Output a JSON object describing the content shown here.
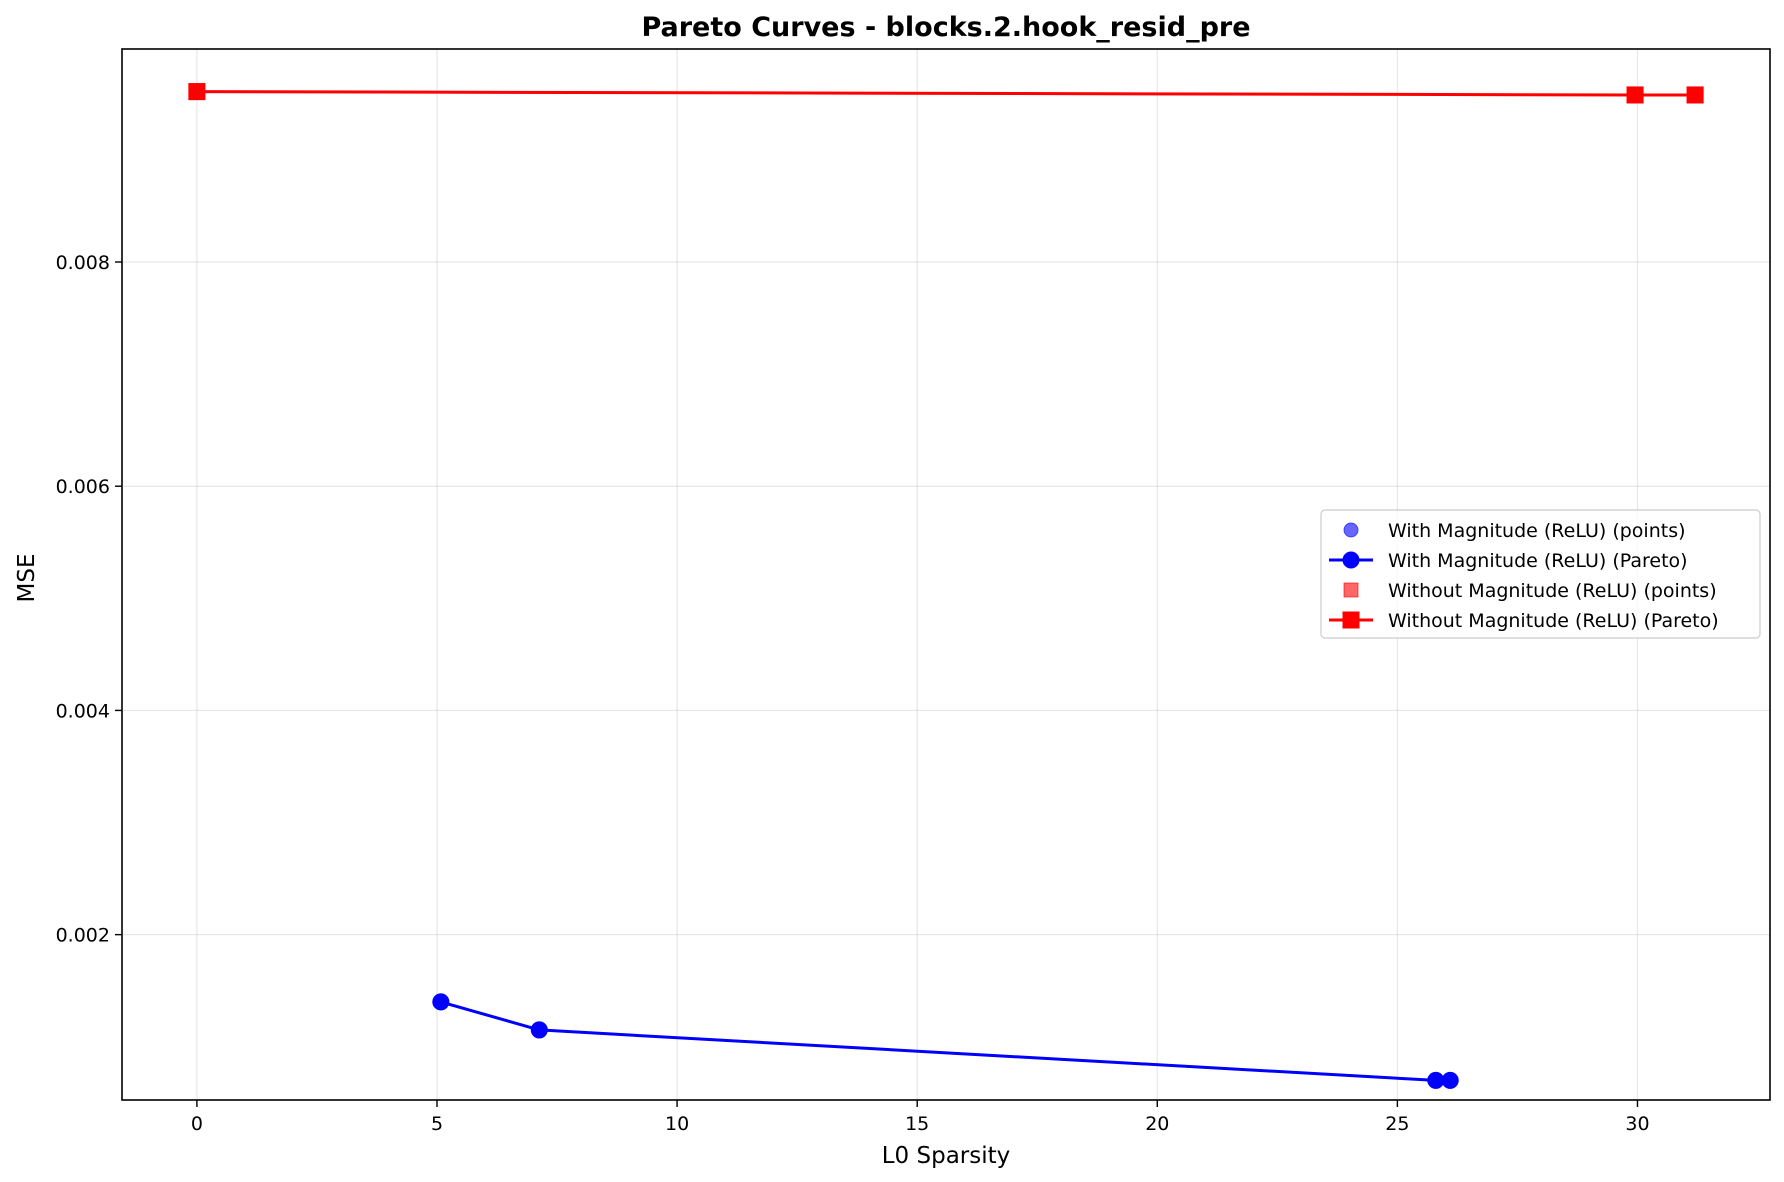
{
  "chart_data": {
    "type": "line",
    "title": "Pareto Curves - blocks.2.hook_resid_pre",
    "xlabel": "L0 Sparsity",
    "ylabel": "MSE",
    "xlim": [
      -1.56,
      32.76
    ],
    "ylim": [
      0.000525,
      0.0099
    ],
    "xticks": [
      0,
      5,
      10,
      15,
      20,
      25,
      30
    ],
    "xtick_labels": [
      "0",
      "5",
      "10",
      "15",
      "20",
      "25",
      "30"
    ],
    "yticks": [
      0.002,
      0.004,
      0.006,
      0.008
    ],
    "ytick_labels": [
      "0.002",
      "0.004",
      "0.006",
      "0.008"
    ],
    "grid": true,
    "legend_position": "center-right",
    "series": [
      {
        "name": "With Magnitude (ReLU) (points)",
        "kind": "scatter",
        "marker": "circle",
        "color": "#0000ff",
        "alpha": 0.6,
        "x": [
          5.08,
          7.13,
          25.8,
          26.1
        ],
        "y": [
          0.0014,
          0.00115,
          0.0007,
          0.0007
        ]
      },
      {
        "name": "With Magnitude (ReLU) (Pareto)",
        "kind": "line",
        "marker": "circle",
        "color": "#0000ff",
        "x": [
          5.08,
          7.13,
          25.8,
          26.1
        ],
        "y": [
          0.0014,
          0.00115,
          0.0007,
          0.0007
        ]
      },
      {
        "name": "Without Magnitude (ReLU) (points)",
        "kind": "scatter",
        "marker": "square",
        "color": "#ff0000",
        "alpha": 0.6,
        "x": [
          0,
          29.95,
          31.2
        ],
        "y": [
          0.00952,
          0.00949,
          0.00949
        ]
      },
      {
        "name": "Without Magnitude (ReLU) (Pareto)",
        "kind": "line",
        "marker": "square",
        "color": "#ff0000",
        "x": [
          0,
          29.95,
          31.2
        ],
        "y": [
          0.00952,
          0.00949,
          0.00949
        ]
      }
    ]
  }
}
